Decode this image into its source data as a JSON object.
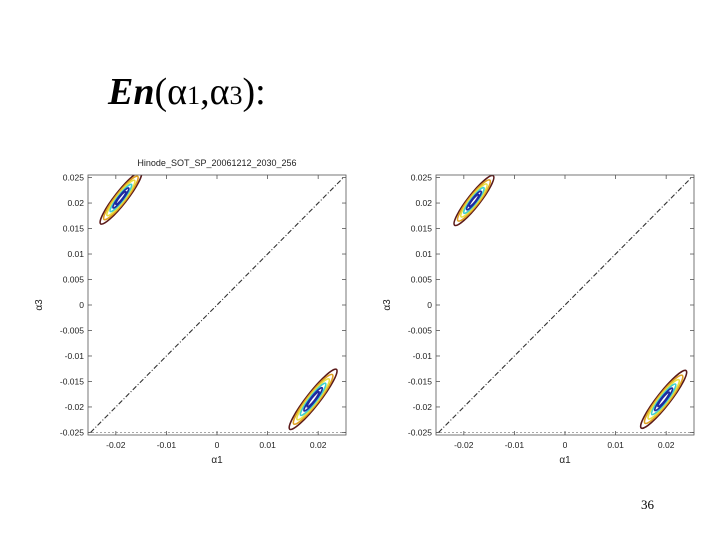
{
  "slide": {
    "title_main": "En",
    "title_open": "(",
    "title_greek_1": "α",
    "title_sub_1": "1",
    "title_comma": ",",
    "title_greek_2": "α",
    "title_sub_2": "3",
    "title_close": "):",
    "page_number": "36"
  },
  "chart_data": [
    {
      "type": "contour",
      "title": "Hinode_SOT_SP_20061212_2030_256",
      "xlabel": "α1",
      "ylabel": "α3",
      "xlim": [
        -0.0255,
        0.0255
      ],
      "ylim": [
        -0.0255,
        0.0255
      ],
      "xticks": [
        -0.02,
        -0.01,
        0,
        0.01,
        0.02
      ],
      "xtick_labels": [
        "-0.02",
        "-0.01",
        "0",
        "0.01",
        "0.02"
      ],
      "yticks": [
        0.025,
        0.02,
        0.015,
        0.01,
        0.005,
        0,
        -0.005,
        -0.01,
        -0.015,
        -0.02,
        -0.025
      ],
      "ytick_labels": [
        "0.025",
        "0.02",
        "0.015",
        "0.01",
        "0.005",
        "0",
        "-0.005",
        "-0.01",
        "-0.015",
        "-0.02",
        "-0.025"
      ],
      "diagonal": {
        "from": [
          -0.025,
          -0.025
        ],
        "to": [
          0.025,
          0.025
        ],
        "style": "dash-dot",
        "color": "#333333"
      },
      "clusters": [
        {
          "center": [
            -0.019,
            0.021
          ],
          "levels": [
            {
              "a": 0.0065,
              "b": 0.0012,
              "color": "#5b1a1a"
            },
            {
              "a": 0.0054,
              "b": 0.001,
              "color": "#e0a020"
            },
            {
              "a": 0.0044,
              "b": 0.0008,
              "color": "#e8e040"
            },
            {
              "a": 0.0034,
              "b": 0.0006,
              "color": "#40d0d0"
            },
            {
              "a": 0.0025,
              "b": 0.00045,
              "color": "#1d2aa0"
            },
            {
              "a": 0.0016,
              "b": 0.0003,
              "color": "#1d2aa0"
            }
          ]
        },
        {
          "center": [
            0.019,
            -0.0185
          ],
          "levels": [
            {
              "a": 0.0075,
              "b": 0.0013,
              "color": "#5b1a1a"
            },
            {
              "a": 0.0062,
              "b": 0.0011,
              "color": "#e0a020"
            },
            {
              "a": 0.0051,
              "b": 0.0009,
              "color": "#e8e040"
            },
            {
              "a": 0.004,
              "b": 0.0007,
              "color": "#40d0d0"
            },
            {
              "a": 0.0029,
              "b": 0.0005,
              "color": "#1d2aa0"
            },
            {
              "a": 0.0019,
              "b": 0.00032,
              "color": "#1d2aa0"
            }
          ]
        }
      ]
    },
    {
      "type": "contour",
      "title": "",
      "xlabel": "α1",
      "ylabel": "α3",
      "xlim": [
        -0.0255,
        0.0255
      ],
      "ylim": [
        -0.0255,
        0.0255
      ],
      "xticks": [
        -0.02,
        -0.01,
        0,
        0.01,
        0.02
      ],
      "xtick_labels": [
        "-0.02",
        "-0.01",
        "0",
        "0.01",
        "0.02"
      ],
      "yticks": [
        0.025,
        0.02,
        0.015,
        0.01,
        0.005,
        0,
        -0.005,
        -0.01,
        -0.015,
        -0.02,
        -0.025
      ],
      "ytick_labels": [
        "0.025",
        "0.02",
        "0.015",
        "0.01",
        "0.005",
        "0",
        "-0.005",
        "-0.01",
        "-0.015",
        "-0.02",
        "-0.025"
      ],
      "diagonal": {
        "from": [
          -0.025,
          -0.025
        ],
        "to": [
          0.025,
          0.025
        ],
        "style": "dash-dot",
        "color": "#333333"
      },
      "clusters": [
        {
          "center": [
            -0.018,
            0.0205
          ],
          "levels": [
            {
              "a": 0.0062,
              "b": 0.0012,
              "color": "#5b1a1a"
            },
            {
              "a": 0.0051,
              "b": 0.001,
              "color": "#e0a020"
            },
            {
              "a": 0.0041,
              "b": 0.0008,
              "color": "#e8e040"
            },
            {
              "a": 0.0032,
              "b": 0.0006,
              "color": "#40d0d0"
            },
            {
              "a": 0.0023,
              "b": 0.00045,
              "color": "#1d2aa0"
            },
            {
              "a": 0.0015,
              "b": 0.0003,
              "color": "#1d2aa0"
            }
          ]
        },
        {
          "center": [
            0.0195,
            -0.0185
          ],
          "levels": [
            {
              "a": 0.0072,
              "b": 0.0013,
              "color": "#5b1a1a"
            },
            {
              "a": 0.006,
              "b": 0.0011,
              "color": "#e0a020"
            },
            {
              "a": 0.0049,
              "b": 0.0009,
              "color": "#e8e040"
            },
            {
              "a": 0.0038,
              "b": 0.0007,
              "color": "#40d0d0"
            },
            {
              "a": 0.0028,
              "b": 0.0005,
              "color": "#1d2aa0"
            },
            {
              "a": 0.0018,
              "b": 0.00032,
              "color": "#1d2aa0"
            }
          ]
        }
      ]
    }
  ]
}
